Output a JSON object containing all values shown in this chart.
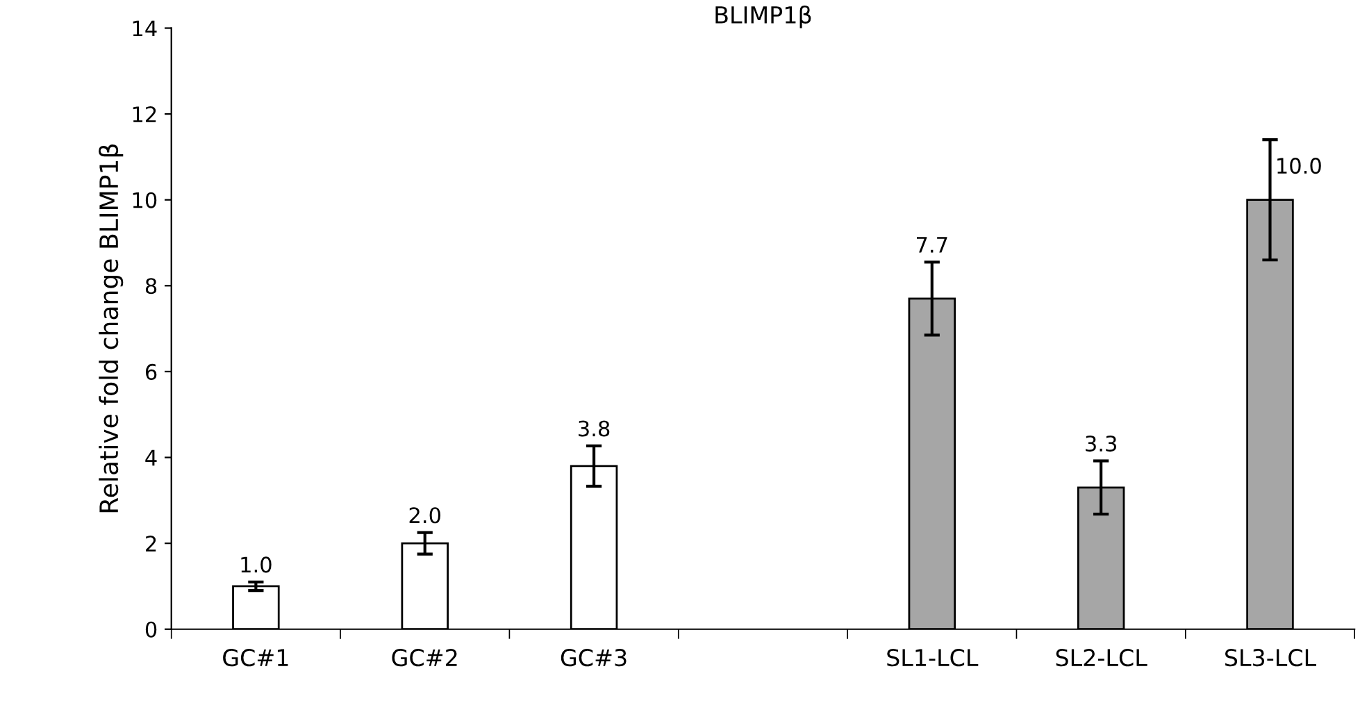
{
  "chart_data": {
    "type": "bar",
    "title": "BLIMP1β",
    "ylabel": "Relative fold change BLIMP1β",
    "categories": [
      "GC#1",
      "GC#2",
      "GC#3",
      null,
      "SL1-LCL",
      "SL2-LCL",
      "SL3-LCL"
    ],
    "values": [
      1.0,
      2.0,
      3.8,
      null,
      7.7,
      3.3,
      10.0
    ],
    "errors": [
      0.1,
      0.25,
      0.47,
      null,
      0.85,
      0.62,
      1.4
    ],
    "colors": [
      "#ffffff",
      "#ffffff",
      "#ffffff",
      "#ffffff",
      "#a6a6a6",
      "#a6a6a6",
      "#a6a6a6"
    ],
    "ylim": [
      0,
      14
    ],
    "yticks": [
      0,
      2,
      4,
      6,
      8,
      10,
      12,
      14
    ],
    "value_labels": [
      "1.0",
      "2.0",
      "3.8",
      null,
      "7.7",
      "3.3",
      "10.0"
    ],
    "grid": false,
    "legend": false
  }
}
